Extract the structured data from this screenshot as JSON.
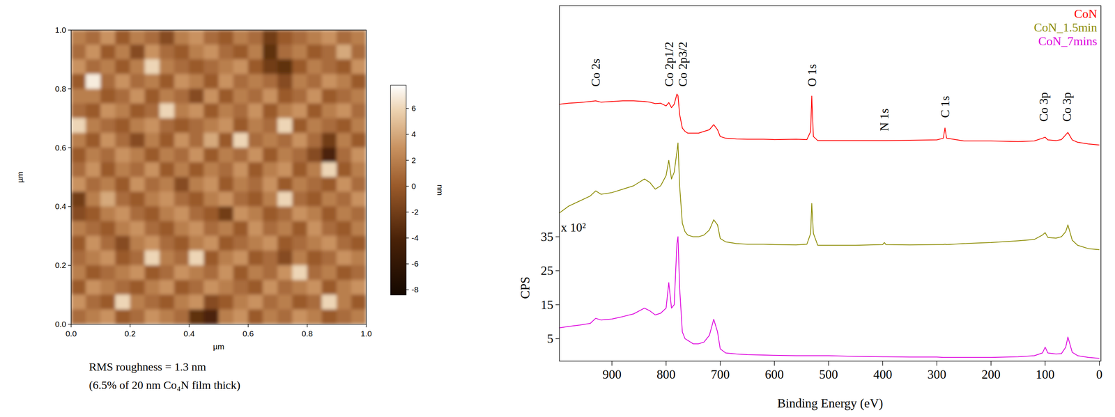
{
  "chart_data": [
    {
      "type": "heatmap",
      "xlabel": "µm",
      "ylabel": "µm",
      "xlim": [
        0,
        1
      ],
      "ylim": [
        0,
        1
      ],
      "xticks": [
        {
          "value": 0,
          "label": "0.0"
        },
        {
          "value": 0.2,
          "label": "0.2"
        },
        {
          "value": 0.4,
          "label": "0.4"
        },
        {
          "value": 0.6,
          "label": "0.6"
        },
        {
          "value": 0.8,
          "label": "0.8"
        },
        {
          "value": 1,
          "label": "1.0"
        }
      ],
      "yticks": [
        {
          "value": 0,
          "label": "0.0"
        },
        {
          "value": 0.2,
          "label": "0.2"
        },
        {
          "value": 0.4,
          "label": "0.4"
        },
        {
          "value": 0.6,
          "label": "0.6"
        },
        {
          "value": 0.8,
          "label": "0.8"
        },
        {
          "value": 1,
          "label": "1.0"
        }
      ],
      "colorbar": {
        "range": [
          -8.4,
          7.8
        ],
        "ticks": [
          -8,
          -6,
          -4,
          -2,
          0,
          2,
          4,
          6
        ],
        "label": "nm"
      },
      "annotations": [
        "RMS roughness = 1.3 nm",
        "(6.5% of 20 nm Co₄N film thick)"
      ],
      "cells": [
        [
          2,
          1,
          3,
          0,
          2,
          1,
          -1,
          2,
          3,
          1,
          0,
          2,
          1,
          -2,
          0,
          1,
          2,
          3,
          1,
          2
        ],
        [
          1,
          3,
          0,
          2,
          -1,
          3,
          1,
          0,
          2,
          3,
          1,
          0,
          2,
          -3,
          1,
          2,
          0,
          1,
          4,
          1
        ],
        [
          3,
          1,
          2,
          0,
          2,
          6,
          2,
          1,
          0,
          1,
          2,
          3,
          0,
          -2,
          -3,
          0,
          2,
          1,
          0,
          3
        ],
        [
          0,
          7,
          1,
          3,
          1,
          2,
          0,
          3,
          2,
          0,
          3,
          1,
          2,
          1,
          -1,
          2,
          1,
          3,
          2,
          0
        ],
        [
          2,
          2,
          0,
          1,
          3,
          0,
          2,
          1,
          -1,
          3,
          0,
          2,
          1,
          3,
          0,
          1,
          3,
          0,
          1,
          2
        ],
        [
          1,
          0,
          3,
          2,
          0,
          1,
          6,
          2,
          3,
          0,
          2,
          1,
          3,
          0,
          2,
          3,
          0,
          2,
          3,
          1
        ],
        [
          6,
          2,
          1,
          0,
          2,
          3,
          1,
          0,
          1,
          2,
          3,
          0,
          2,
          1,
          6,
          0,
          2,
          1,
          0,
          2
        ],
        [
          2,
          0,
          3,
          1,
          -1,
          2,
          0,
          3,
          1,
          4,
          0,
          6,
          1,
          2,
          1,
          3,
          1,
          -2,
          2,
          0
        ],
        [
          0,
          2,
          1,
          3,
          2,
          0,
          2,
          1,
          3,
          0,
          2,
          1,
          3,
          0,
          2,
          1,
          -1,
          -4,
          1,
          3
        ],
        [
          1,
          3,
          0,
          2,
          1,
          3,
          0,
          2,
          0,
          2,
          1,
          3,
          0,
          2,
          3,
          0,
          2,
          6,
          0,
          2
        ],
        [
          3,
          1,
          2,
          0,
          3,
          1,
          2,
          -1,
          2,
          3,
          0,
          2,
          1,
          3,
          0,
          2,
          1,
          0,
          3,
          1
        ],
        [
          -2,
          2,
          4,
          1,
          0,
          2,
          3,
          1,
          0,
          2,
          3,
          1,
          0,
          2,
          6,
          1,
          0,
          2,
          1,
          3
        ],
        [
          -1,
          0,
          2,
          3,
          1,
          0,
          2,
          3,
          1,
          0,
          -2,
          3,
          2,
          0,
          1,
          3,
          2,
          0,
          2,
          1
        ],
        [
          2,
          1,
          0,
          2,
          3,
          1,
          0,
          2,
          3,
          1,
          2,
          0,
          3,
          1,
          2,
          0,
          3,
          1,
          0,
          2
        ],
        [
          0,
          3,
          1,
          -1,
          2,
          3,
          1,
          0,
          2,
          3,
          0,
          1,
          2,
          3,
          0,
          1,
          2,
          3,
          1,
          0
        ],
        [
          1,
          2,
          3,
          0,
          1,
          6,
          2,
          1,
          6,
          0,
          2,
          3,
          0,
          1,
          -1,
          2,
          0,
          1,
          3,
          2
        ],
        [
          2,
          0,
          1,
          2,
          3,
          0,
          1,
          3,
          2,
          1,
          3,
          0,
          2,
          1,
          3,
          6,
          1,
          2,
          0,
          1
        ],
        [
          0,
          3,
          2,
          1,
          0,
          2,
          3,
          0,
          1,
          3,
          2,
          1,
          0,
          3,
          1,
          2,
          3,
          0,
          2,
          3
        ],
        [
          3,
          1,
          0,
          6,
          2,
          1,
          0,
          2,
          3,
          -1,
          0,
          2,
          3,
          1,
          2,
          0,
          1,
          6,
          2,
          0
        ],
        [
          1,
          2,
          3,
          0,
          1,
          3,
          2,
          1,
          -3,
          -4,
          2,
          3,
          0,
          2,
          1,
          3,
          2,
          0,
          1,
          2
        ]
      ]
    },
    {
      "type": "line",
      "xlabel": "Binding Energy (eV)",
      "ylabel": "CPS",
      "y_multiplier": "x 10²",
      "xlim": [
        997,
        -3
      ],
      "ylim": [
        -1.6,
        103
      ],
      "xticks": [
        900,
        800,
        700,
        600,
        500,
        400,
        300,
        200,
        100,
        0
      ],
      "yticks": [
        5,
        15,
        25,
        35
      ],
      "legend": "upper right",
      "annotations": [
        {
          "x": 930,
          "label": "Co 2s"
        },
        {
          "x": 795,
          "label": "Co 2p1/2"
        },
        {
          "x": 778,
          "label": "Co 2p3/2"
        },
        {
          "x": 531,
          "label": "O 1s"
        },
        {
          "x": 397,
          "label": "N 1s"
        },
        {
          "x": 285,
          "label": "C 1s"
        },
        {
          "x": 103,
          "label": "Co 3p"
        },
        {
          "x": 60,
          "label": "Co 3p"
        }
      ],
      "x": [
        997,
        980,
        960,
        940,
        930,
        920,
        900,
        880,
        860,
        840,
        830,
        820,
        810,
        800,
        795,
        790,
        785,
        780,
        778,
        775,
        770,
        765,
        760,
        750,
        740,
        730,
        720,
        712,
        705,
        700,
        690,
        670,
        650,
        620,
        600,
        560,
        540,
        533,
        531,
        528,
        520,
        500,
        450,
        400,
        397,
        394,
        350,
        300,
        288,
        285,
        282,
        250,
        200,
        150,
        120,
        105,
        100,
        95,
        80,
        70,
        62,
        58,
        50,
        40,
        20,
        0
      ],
      "series": [
        {
          "name": "CoN",
          "color": "#ff0000",
          "values": [
            74,
            74.3,
            74.5,
            74.8,
            75,
            74.6,
            74.8,
            75,
            75,
            74.8,
            74.6,
            74.2,
            74.3,
            73.5,
            74.5,
            73,
            74,
            77,
            76.5,
            71,
            67,
            66,
            65.5,
            65.5,
            65.5,
            66,
            66.5,
            68,
            66.5,
            64.5,
            64,
            63.8,
            63.7,
            63.7,
            63.6,
            63.7,
            63.6,
            66,
            76.4,
            64.5,
            63.3,
            63.3,
            63.3,
            63.3,
            63.3,
            63.3,
            63.4,
            63.5,
            64,
            67,
            64,
            63.2,
            63.2,
            63,
            63.2,
            64,
            64.3,
            63.5,
            63.3,
            63.6,
            65,
            65.7,
            63.5,
            62.8,
            62.3,
            62
          ]
        },
        {
          "name": "CoN_1.5min",
          "color": "#8b8b00",
          "values": [
            42,
            44,
            45.5,
            47,
            48.5,
            47.5,
            48,
            49,
            50,
            52,
            51,
            49,
            50,
            53,
            57.5,
            52,
            54,
            60,
            62.6,
            50,
            39,
            36.5,
            35.5,
            35,
            35,
            35.5,
            37,
            40,
            38.5,
            34.5,
            33.5,
            33,
            32.8,
            32.8,
            32.7,
            32.6,
            32.8,
            36,
            44.8,
            36,
            32.5,
            32.5,
            32.5,
            32.7,
            33.3,
            32.7,
            32.6,
            32.7,
            32.7,
            32.8,
            32.7,
            33,
            33.3,
            33.8,
            34.2,
            35.5,
            36.2,
            34.8,
            34.6,
            35,
            36.5,
            38.5,
            34,
            32.5,
            31.5,
            31.2
          ]
        },
        {
          "name": "CoN_7mins",
          "color": "#dd00dd",
          "values": [
            8.2,
            8.6,
            9,
            9.5,
            11,
            10.5,
            10.8,
            11.5,
            12.3,
            14,
            13.2,
            12,
            12.5,
            14,
            21.5,
            14,
            15,
            33,
            35,
            20,
            7,
            5,
            4.5,
            3.5,
            3.5,
            4,
            6,
            10.7,
            7,
            2,
            0.8,
            0.5,
            0.3,
            0.2,
            0.1,
            0,
            0,
            0,
            0,
            0,
            0,
            0,
            -0.2,
            -0.3,
            -0.3,
            -0.3,
            -0.4,
            -0.4,
            -0.5,
            -0.5,
            -0.5,
            -0.5,
            -0.5,
            -0.3,
            0,
            0.8,
            2.5,
            0.8,
            0.5,
            0.6,
            2.5,
            5.5,
            1,
            0,
            -0.5,
            -0.8
          ]
        }
      ]
    }
  ]
}
